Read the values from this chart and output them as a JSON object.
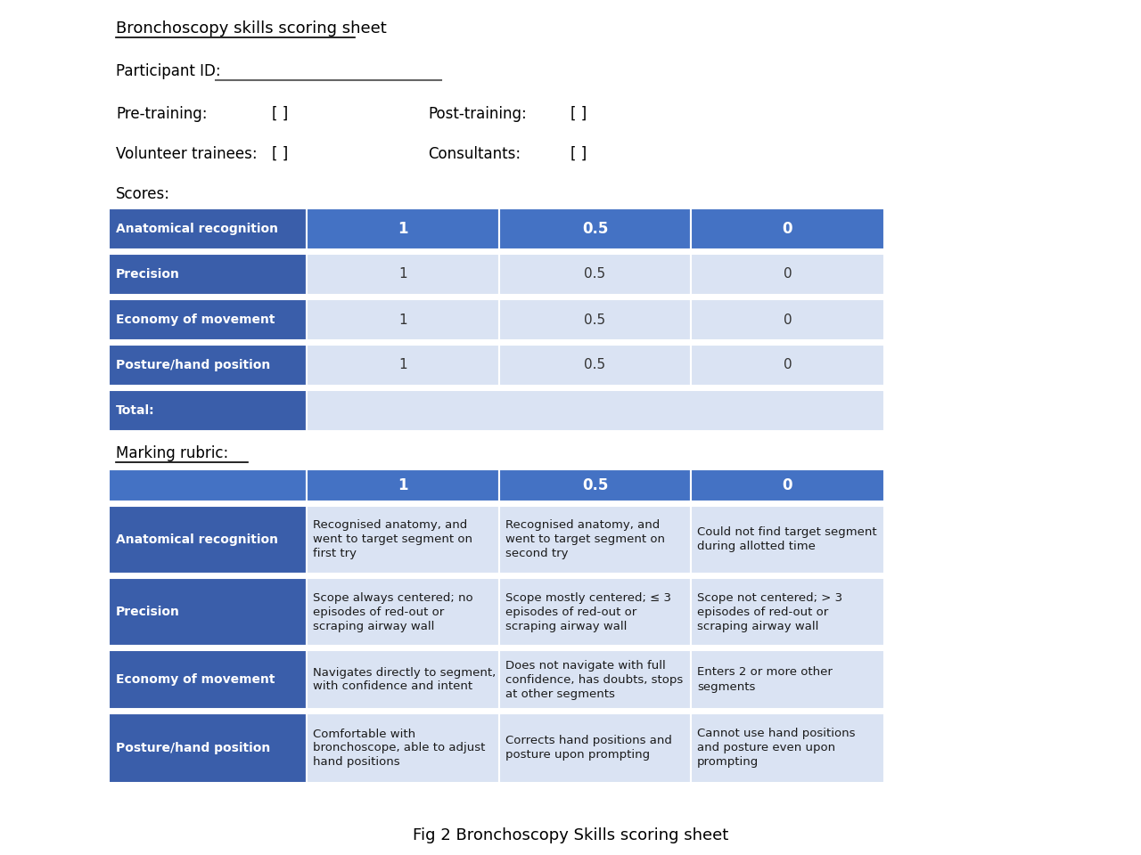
{
  "title": "Bronchoscopy skills scoring sheet",
  "participant_id_label": "Participant ID:",
  "pre_training": "Pre-training:",
  "post_training": "Post-training:",
  "volunteer_trainees": "Volunteer trainees:",
  "consultants": "Consultants:",
  "scores_label": "Scores:",
  "marking_rubric_label": "Marking rubric:",
  "figure_caption": "Fig 2 Bronchoscopy Skills scoring sheet",
  "dark_blue": "#3A5EAA",
  "medium_blue": "#4472C4",
  "light_blue": "#C5D3EE",
  "lighter_blue": "#DAE3F3",
  "white": "#FFFFFF",
  "scores_rows": [
    {
      "label": "Anatomical recognition",
      "v1": "1",
      "v05": "0.5",
      "v0": "0",
      "header": true
    },
    {
      "label": "Precision",
      "v1": "1",
      "v05": "0.5",
      "v0": "0",
      "header": false
    },
    {
      "label": "Economy of movement",
      "v1": "1",
      "v05": "0.5",
      "v0": "0",
      "header": false
    },
    {
      "label": "Posture/hand position",
      "v1": "1",
      "v05": "0.5",
      "v0": "0",
      "header": false
    },
    {
      "label": "Total:",
      "v1": "",
      "v05": "",
      "v0": "",
      "header": false
    }
  ],
  "rubric_rows": [
    {
      "label": "Anatomical recognition",
      "v1": "Recognised anatomy, and\nwent to target segment on\nfirst try",
      "v05": "Recognised anatomy, and\nwent to target segment on\nsecond try",
      "v0": "Could not find target segment\nduring allotted time"
    },
    {
      "label": "Precision",
      "v1": "Scope always centered; no\nepisodes of red-out or\nscraping airway wall",
      "v05": "Scope mostly centered; ≤ 3\nepisodes of red-out or\nscraping airway wall",
      "v0": "Scope not centered; > 3\nepisodes of red-out or\nscraping airway wall"
    },
    {
      "label": "Economy of movement",
      "v1": "Navigates directly to segment,\nwith confidence and intent",
      "v05": "Does not navigate with full\nconfidence, has doubts, stops\nat other segments",
      "v0": "Enters 2 or more other\nsegments"
    },
    {
      "label": "Posture/hand position",
      "v1": "Comfortable with\nbronchoscope, able to adjust\nhand positions",
      "v05": "Corrects hand positions and\nposture upon prompting",
      "v0": "Cannot use hand positions\nand posture even upon\nprompting"
    }
  ]
}
